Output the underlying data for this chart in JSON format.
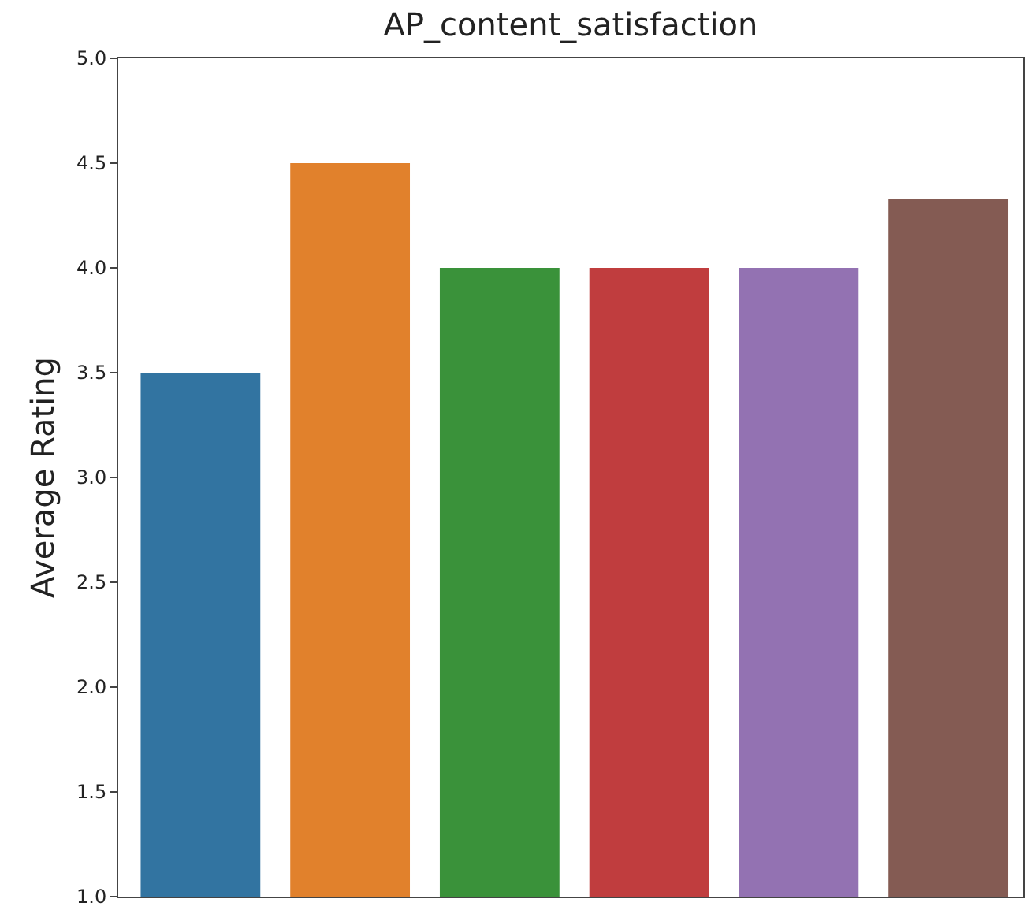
{
  "chart_data": {
    "type": "bar",
    "title": "AP_content_satisfaction",
    "ylabel": "Average Rating",
    "categories": [
      null,
      null,
      null,
      null,
      null,
      null
    ],
    "values": [
      3.5,
      4.5,
      4.0,
      4.0,
      4.0,
      4.33
    ],
    "colors": [
      "#3274a1",
      "#e1812c",
      "#3a923a",
      "#c03d3e",
      "#9372b2",
      "#845b53"
    ],
    "ylim": [
      1.0,
      5.0
    ],
    "yticks": [
      {
        "value": 1,
        "label": "1.0"
      },
      {
        "value": 1.5,
        "label": "1.5"
      },
      {
        "value": 2,
        "label": "2.0"
      },
      {
        "value": 2.5,
        "label": "2.5"
      },
      {
        "value": 3,
        "label": "3.0"
      },
      {
        "value": 3.5,
        "label": "3.5"
      },
      {
        "value": 4,
        "label": "4.0"
      },
      {
        "value": 4.5,
        "label": "4.5"
      },
      {
        "value": 5,
        "label": "5.0"
      }
    ],
    "grid": false
  }
}
